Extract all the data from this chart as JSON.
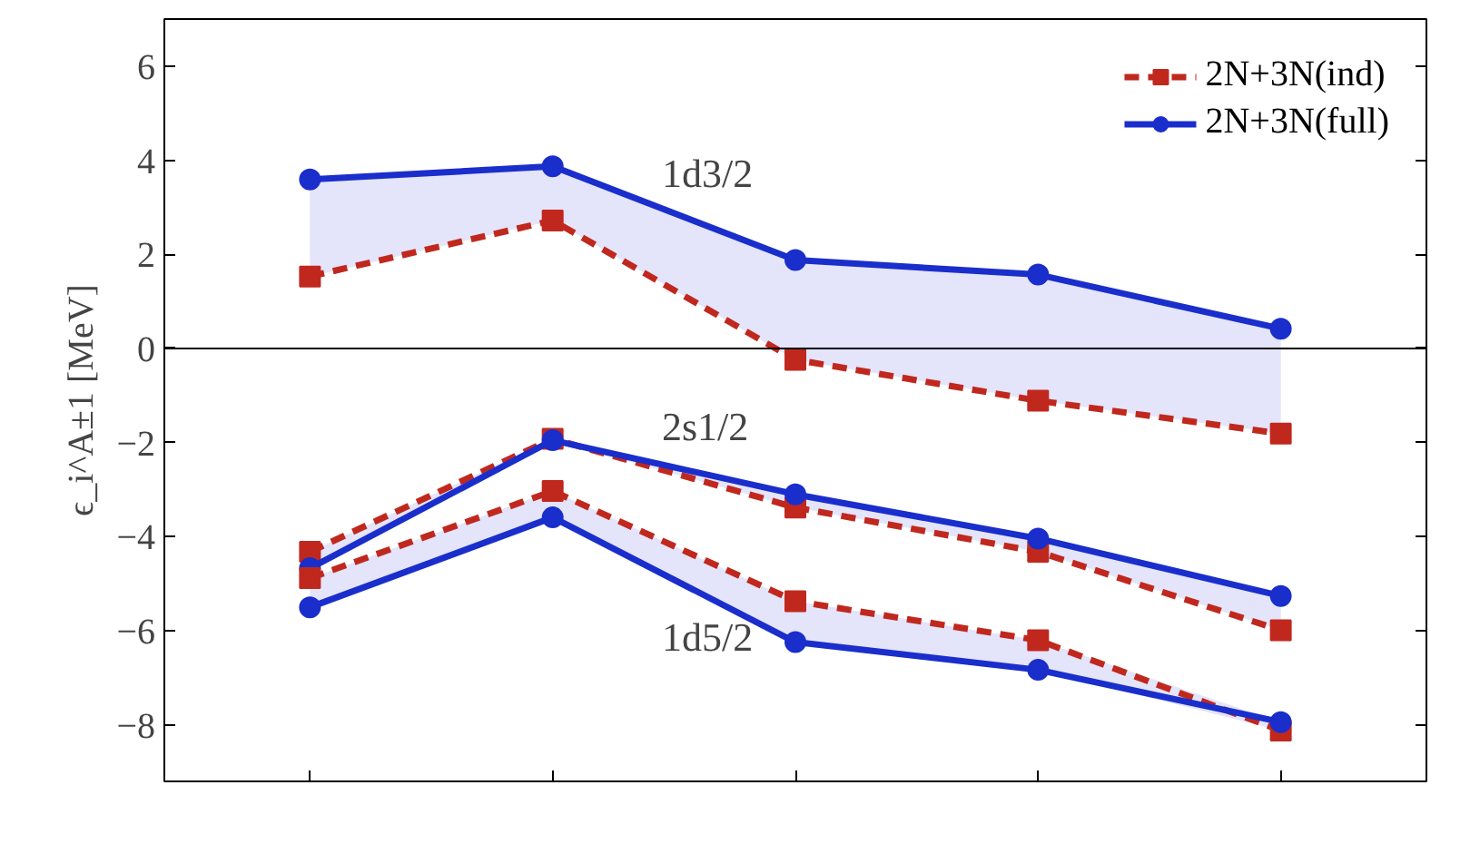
{
  "chart_data": {
    "type": "line",
    "ylabel": "ϵ_i^A±1 [MeV]",
    "categories": [
      null,
      null,
      null,
      null,
      null
    ],
    "series": [
      {
        "name": "2N+3N(ind)",
        "color": "#c0281e",
        "marker": "square",
        "line_style": "dashed",
        "values": [
          1.53,
          2.72,
          -0.24,
          -1.11,
          -1.81
        ]
      },
      {
        "name": "2N+3N(full)",
        "color": "#1a2ecc",
        "marker": "circle",
        "line_style": "solid",
        "values": [
          3.59,
          3.87,
          1.88,
          1.57,
          0.42
        ],
        "lower": [
          1.53,
          2.72,
          -0.24,
          -1.11,
          -1.81
        ],
        "upper": [
          3.59,
          3.87,
          1.88,
          1.57,
          0.42
        ]
      },
      {
        "color": "#c0281e",
        "marker": "square",
        "line_style": "dashed",
        "values": [
          -4.32,
          -1.92,
          -3.38,
          -4.32,
          -5.99
        ]
      },
      {
        "color": "#1a2ecc",
        "marker": "circle",
        "line_style": "solid",
        "values": [
          -4.67,
          -1.95,
          -3.1,
          -4.04,
          -5.26
        ],
        "lower": [
          -4.67,
          -1.95,
          -3.38,
          -4.32,
          -5.99
        ],
        "upper": [
          -4.32,
          -1.92,
          -3.1,
          -4.04,
          -5.26
        ]
      },
      {
        "color": "#c0281e",
        "marker": "square",
        "line_style": "dashed",
        "values": [
          -4.88,
          -3.03,
          -5.37,
          -6.2,
          -8.12
        ]
      },
      {
        "color": "#1a2ecc",
        "marker": "circle",
        "line_style": "solid",
        "values": [
          -5.5,
          -3.59,
          -6.24,
          -6.83,
          -7.94
        ],
        "lower": [
          -5.5,
          -3.59,
          -6.24,
          -6.83,
          -8.12
        ],
        "upper": [
          -4.88,
          -3.03,
          -5.37,
          -6.2,
          -7.94
        ]
      }
    ],
    "annotations": [
      "1d3/2",
      "2s1/2",
      "1d5/2"
    ],
    "ref_lines": [
      {
        "axis": "y",
        "value": 0,
        "color": "#000000"
      }
    ],
    "ylim": [
      -9.2,
      7
    ],
    "yticks": [
      -8,
      -6,
      -4,
      -2,
      0,
      2,
      4,
      6
    ],
    "tick_labels": "y",
    "grid": false,
    "legend": "top right"
  }
}
